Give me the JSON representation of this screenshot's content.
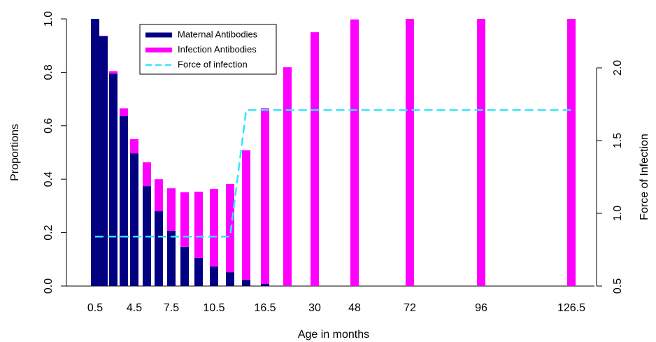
{
  "chart_data": {
    "type": "bar",
    "xlabel": "Age in months",
    "ylabel": "Proportions",
    "y2label": "Force of Infection",
    "categories": [
      "0.5",
      null,
      null,
      null,
      "4.5",
      null,
      null,
      "7.5",
      null,
      null,
      "10.5",
      null,
      null,
      "16.5",
      null,
      "30",
      "48",
      "72",
      "96",
      "126.5"
    ],
    "stacked": true,
    "series": [
      {
        "name": "Maternal Antibodies",
        "color": "#000080",
        "values": [
          1.0,
          0.935,
          0.795,
          0.636,
          0.497,
          0.374,
          0.28,
          0.207,
          0.147,
          0.105,
          0.073,
          0.052,
          0.024,
          0.008,
          0,
          0,
          0,
          0,
          0,
          0
        ]
      },
      {
        "name": "Infection Antibodies",
        "color": "#ff00ff",
        "values": [
          0,
          0.002,
          0.009,
          0.029,
          0.053,
          0.089,
          0.12,
          0.159,
          0.204,
          0.248,
          0.291,
          0.33,
          0.484,
          0.657,
          0.819,
          0.95,
          0.998,
          1.0,
          1.0,
          1.0
        ]
      },
      {
        "name": "Force of infection",
        "color": "#33e6ff",
        "type": "line",
        "dashed": true,
        "axis": "y2",
        "values": [
          0.84,
          0.84,
          0.84,
          0.84,
          0.84,
          0.84,
          0.84,
          0.84,
          0.84,
          0.84,
          0.84,
          0.84,
          1.71,
          1.71,
          1.71,
          1.71,
          1.71,
          1.71,
          1.71,
          1.71
        ]
      }
    ],
    "ylim": [
      0,
      1
    ],
    "yticks": [
      {
        "value": 0,
        "label": "0.0"
      },
      0.2,
      0.4,
      0.6,
      0.8,
      {
        "value": 1,
        "label": "1.0"
      }
    ],
    "y2lim": [
      0.5,
      2.0
    ],
    "y2ticks": [
      0.5,
      {
        "value": 1,
        "label": "1.0"
      },
      1.5,
      {
        "value": 2,
        "label": "2.0"
      }
    ],
    "legend": "top-left"
  }
}
